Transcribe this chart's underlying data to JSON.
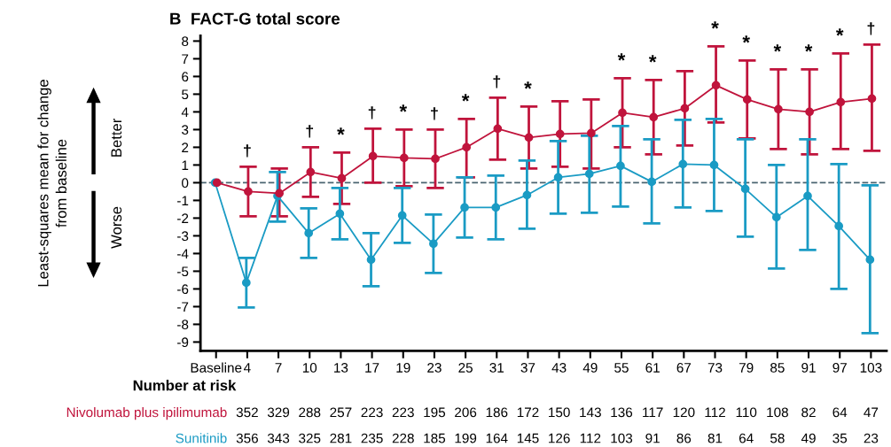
{
  "chart_data": {
    "type": "line",
    "title": "B  FACT-G total score",
    "categories": [
      "Baseline",
      "4",
      "7",
      "10",
      "13",
      "17",
      "19",
      "23",
      "25",
      "31",
      "37",
      "43",
      "49",
      "55",
      "61",
      "67",
      "73",
      "79",
      "85",
      "91",
      "97",
      "103"
    ],
    "series": [
      {
        "name": "Nivolumab plus ipilimumab",
        "color": "#c0143c",
        "values": [
          0,
          -0.5,
          -0.6,
          0.6,
          0.25,
          1.5,
          1.4,
          1.35,
          2.0,
          3.05,
          2.55,
          2.75,
          2.8,
          3.95,
          3.7,
          4.2,
          5.5,
          4.7,
          4.15,
          4.0,
          4.55,
          4.75
        ],
        "errors": [
          null,
          [
            -1.9,
            0.9
          ],
          [
            -1.9,
            0.8
          ],
          [
            -0.8,
            2.0
          ],
          [
            -1.2,
            1.7
          ],
          [
            0,
            3.05
          ],
          [
            -0.2,
            3.0
          ],
          [
            -0.3,
            3.0
          ],
          [
            0.3,
            3.6
          ],
          [
            1.3,
            4.8
          ],
          [
            0.8,
            4.3
          ],
          [
            0.9,
            4.6
          ],
          [
            0.8,
            4.7
          ],
          [
            2.0,
            5.9
          ],
          [
            1.6,
            5.8
          ],
          [
            2.1,
            6.3
          ],
          [
            3.4,
            7.7
          ],
          [
            2.5,
            6.9
          ],
          [
            1.9,
            6.4
          ],
          [
            1.6,
            6.4
          ],
          [
            1.9,
            7.3
          ],
          [
            1.8,
            7.8
          ]
        ]
      },
      {
        "name": "Sunitinib",
        "color": "#1a9bc4",
        "values": [
          0,
          -5.65,
          -0.75,
          -2.85,
          -1.75,
          -4.35,
          -1.85,
          -3.45,
          -1.4,
          -1.4,
          -0.7,
          0.3,
          0.5,
          0.95,
          0.05,
          1.05,
          1.0,
          -0.35,
          -1.95,
          -0.75,
          -2.45,
          -4.35
        ],
        "errors": [
          null,
          [
            -7.05,
            -4.25
          ],
          [
            -2.2,
            0.6
          ],
          [
            -4.25,
            -1.45
          ],
          [
            -3.2,
            -0.3
          ],
          [
            -5.85,
            -2.85
          ],
          [
            -3.4,
            -0.3
          ],
          [
            -5.1,
            -1.8
          ],
          [
            -3.1,
            0.3
          ],
          [
            -3.2,
            0.4
          ],
          [
            -2.6,
            1.25
          ],
          [
            -1.75,
            2.35
          ],
          [
            -1.7,
            2.65
          ],
          [
            -1.35,
            3.2
          ],
          [
            -2.3,
            2.45
          ],
          [
            -1.4,
            3.55
          ],
          [
            -1.6,
            3.6
          ],
          [
            -3.05,
            2.45
          ],
          [
            -4.85,
            1.0
          ],
          [
            -3.8,
            2.45
          ],
          [
            -6.0,
            1.05
          ],
          [
            -8.5,
            -0.15
          ]
        ]
      }
    ],
    "ylim": [
      -9.5,
      8.3
    ],
    "yticks": [
      -9,
      -8,
      -7,
      -6,
      -5,
      -4,
      -3,
      -2,
      -1,
      0,
      1,
      2,
      3,
      4,
      5,
      6,
      7,
      8
    ],
    "ref_lines": [
      {
        "axis": "y",
        "value": 0,
        "color": "#4a6470",
        "line_style": "dashed"
      }
    ],
    "marker": "circle",
    "grid": false,
    "legend": false,
    "annotations": [
      {
        "text": "†",
        "x": "4",
        "y": 0.9
      },
      {
        "text": "†",
        "x": "10",
        "y": 2.0
      },
      {
        "text": "*",
        "x": "13",
        "y": 1.7
      },
      {
        "text": "†",
        "x": "17",
        "y": 3.05
      },
      {
        "text": "*",
        "x": "19",
        "y": 3.0
      },
      {
        "text": "†",
        "x": "23",
        "y": 3.0
      },
      {
        "text": "*",
        "x": "25",
        "y": 3.6
      },
      {
        "text": "†",
        "x": "31",
        "y": 4.8
      },
      {
        "text": "*",
        "x": "37",
        "y": 4.3
      },
      {
        "text": "*",
        "x": "55",
        "y": 5.9
      },
      {
        "text": "*",
        "x": "61",
        "y": 5.8
      },
      {
        "text": "*",
        "x": "73",
        "y": 7.7
      },
      {
        "text": "*",
        "x": "79",
        "y": 6.9
      },
      {
        "text": "*",
        "x": "85",
        "y": 6.4
      },
      {
        "text": "*",
        "x": "91",
        "y": 6.4
      },
      {
        "text": "*",
        "x": "97",
        "y": 7.3
      },
      {
        "text": "†",
        "x": "103",
        "y": 7.8
      },
      "Better",
      "Worse",
      "Number at risk",
      "Least-squares mean for change\nfrom baseline",
      "352 329 288 257 223 223 195 206 186 172 150 143 136 117 120 112 110 108 82 64 47",
      "356 343 325 281 235 228 185 199 164 145 126 112 103 91 86 81 64 58 49 35 23"
    ]
  }
}
